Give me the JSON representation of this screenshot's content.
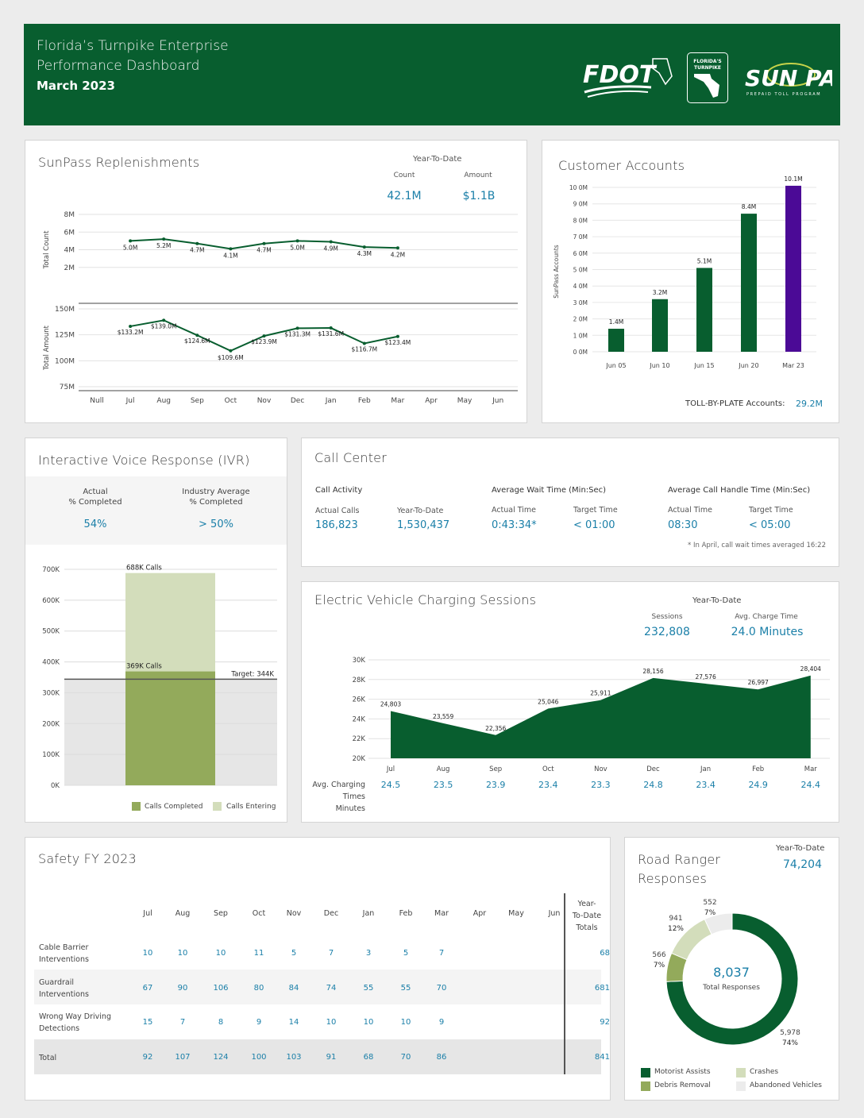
{
  "header": {
    "line1": "Florida’s Turnpike Enterprise",
    "line2": "Performance Dashboard",
    "period": "March 2023",
    "logos": {
      "fdot": "FDOT",
      "turnpike_line1": "FLORIDA'S",
      "turnpike_line2": "TURNPIKE",
      "sunpass": "SUN PASS",
      "sunpass_tag": "PREPAID TOLL PROGRAM"
    }
  },
  "sunpass": {
    "title": "SunPass Replenishments",
    "ytd_label": "Year-To-Date",
    "count_label": "Count",
    "amount_label": "Amount",
    "count_value": "42.1M",
    "amount_value": "$1.1B"
  },
  "customer": {
    "title": "Customer Accounts",
    "tbp_label": "TOLL-BY-PLATE Accounts:",
    "tbp_value": "29.2M"
  },
  "ivr": {
    "title": "Interactive Voice Response (IVR)",
    "actual_label_1": "Actual",
    "actual_label_2": "% Completed",
    "actual_value": "54%",
    "industry_label_1": "Industry Average",
    "industry_label_2": "% Completed",
    "industry_value": "> 50%",
    "legend_completed": "Calls Completed",
    "legend_entering": "Calls Entering"
  },
  "callcenter": {
    "title": "Call Center",
    "activity_label": "Call Activity",
    "actual_calls_label": "Actual Calls",
    "actual_calls": "186,823",
    "ytd_label": "Year-To-Date",
    "ytd_calls": "1,530,437",
    "wait_label": "Average Wait Time (Min:Sec)",
    "wait_actual_label": "Actual Time",
    "wait_actual": "0:43:34*",
    "wait_target_label": "Target Time",
    "wait_target": "< 01:00",
    "handle_label": "Average Call Handle Time (Min:Sec)",
    "handle_actual_label": "Actual Time",
    "handle_actual": "08:30",
    "handle_target_label": "Target Time",
    "handle_target": "< 05:00",
    "footnote": "* In April, call wait times averaged 16:22"
  },
  "ev": {
    "title": "Electric Vehicle Charging Sessions",
    "ytd_label": "Year-To-Date",
    "sessions_label": "Sessions",
    "sessions_value": "232,808",
    "avg_label": "Avg. Charge Time",
    "avg_value": "24.0 Minutes",
    "row_label_1": "Avg. Charging",
    "row_label_2": "Times",
    "row_label_3": "Minutes"
  },
  "safety": {
    "title": "Safety FY 2023",
    "months": [
      "Jul",
      "Aug",
      "Sep",
      "Oct",
      "Nov",
      "Dec",
      "Jan",
      "Feb",
      "Mar",
      "Apr",
      "May",
      "Jun"
    ],
    "ytd_header_1": "Year-",
    "ytd_header_2": "To-Date",
    "ytd_header_3": "Totals",
    "rows": [
      {
        "label1": "Cable Barrier",
        "label2": "Interventions",
        "values": [
          "10",
          "10",
          "10",
          "11",
          "5",
          "7",
          "3",
          "5",
          "7"
        ],
        "total": "68"
      },
      {
        "label1": "Guardrail",
        "label2": "Interventions",
        "values": [
          "67",
          "90",
          "106",
          "80",
          "84",
          "74",
          "55",
          "55",
          "70"
        ],
        "total": "681"
      },
      {
        "label1": "Wrong Way Driving",
        "label2": "Detections",
        "values": [
          "15",
          "7",
          "8",
          "9",
          "14",
          "10",
          "10",
          "10",
          "9"
        ],
        "total": "92"
      },
      {
        "label1": "Total",
        "label2": "",
        "values": [
          "92",
          "107",
          "124",
          "100",
          "103",
          "91",
          "68",
          "70",
          "86"
        ],
        "total": "841"
      }
    ]
  },
  "ranger": {
    "title_1": "Road Ranger",
    "title_2": "Responses",
    "ytd_label": "Year-To-Date",
    "ytd_value": "74,204",
    "center_value": "8,037",
    "center_label": "Total Responses",
    "legend": [
      "Motorist Assists",
      "Crashes",
      "Debris Removal",
      "Abandoned Vehicles"
    ]
  },
  "chart_data": [
    {
      "type": "line",
      "title": "SunPass Replenishments",
      "categories": [
        "Null",
        "Jul",
        "Aug",
        "Sep",
        "Oct",
        "Nov",
        "Dec",
        "Jan",
        "Feb",
        "Mar",
        "Apr",
        "May",
        "Jun"
      ],
      "series": [
        {
          "name": "Total Count",
          "ylabel": "Total Count",
          "ylim": [
            0,
            8
          ],
          "ticks": [
            "2M",
            "4M",
            "6M",
            "8M"
          ],
          "values": [
            null,
            5.0,
            5.2,
            4.7,
            4.1,
            4.7,
            5.0,
            4.9,
            4.3,
            4.2,
            null,
            null,
            null
          ],
          "labels": [
            "",
            "5.0M",
            "5.2M",
            "4.7M",
            "4.1M",
            "4.7M",
            "5.0M",
            "4.9M",
            "4.3M",
            "4.2M",
            "",
            "",
            ""
          ]
        },
        {
          "name": "Total Amount",
          "ylabel": "Total Amount",
          "ylim": [
            75,
            150
          ],
          "ticks": [
            "75M",
            "100M",
            "125M",
            "150M"
          ],
          "values": [
            null,
            133.2,
            139.0,
            124.6,
            109.6,
            123.9,
            131.3,
            131.6,
            116.7,
            123.4,
            null,
            null,
            null
          ],
          "labels": [
            "",
            "$133.2M",
            "$139.0M",
            "$124.6M",
            "$109.6M",
            "$123.9M",
            "$131.3M",
            "$131.6M",
            "$116.7M",
            "$123.4M",
            "",
            "",
            ""
          ]
        }
      ]
    },
    {
      "type": "bar",
      "title": "Customer Accounts",
      "ylabel": "SunPass Accounts",
      "categories": [
        "Jun 05",
        "Jun 10",
        "Jun 15",
        "Jun 20",
        "Mar 23"
      ],
      "values": [
        1.4,
        3.2,
        5.1,
        8.4,
        10.1
      ],
      "labels": [
        "1.4M",
        "3.2M",
        "5.1M",
        "8.4M",
        "10.1M"
      ],
      "yticks": [
        "0 0M",
        "1 0M",
        "2 0M",
        "3 0M",
        "4 0M",
        "5 0M",
        "6 0M",
        "7 0M",
        "8 0M",
        "9 0M",
        "10 0M"
      ],
      "ylim": [
        0,
        10
      ],
      "colors": [
        "#085e2f",
        "#085e2f",
        "#085e2f",
        "#085e2f",
        "#4b0a96"
      ]
    },
    {
      "type": "bar",
      "title": "Interactive Voice Response (IVR)",
      "series": [
        {
          "name": "Calls Entering",
          "value": 688,
          "label": "688K Calls",
          "color": "#d3ddbb"
        },
        {
          "name": "Calls Completed",
          "value": 369,
          "label": "369K Calls",
          "color": "#93aa5b"
        }
      ],
      "target": 344,
      "target_label": "Target: 344K",
      "ylim": [
        0,
        700
      ],
      "yticks": [
        "0K",
        "100K",
        "200K",
        "300K",
        "400K",
        "500K",
        "600K",
        "700K"
      ]
    },
    {
      "type": "area",
      "title": "Electric Vehicle Charging Sessions",
      "categories": [
        "Jul",
        "Aug",
        "Sep",
        "Oct",
        "Nov",
        "Dec",
        "Jan",
        "Feb",
        "Mar"
      ],
      "values": [
        24803,
        23559,
        22356,
        25046,
        25911,
        28156,
        27576,
        26997,
        28404
      ],
      "labels": [
        "24,803",
        "23,559",
        "22,356",
        "25,046",
        "25,911",
        "28,156",
        "27,576",
        "26,997",
        "28,404"
      ],
      "avg_charging_minutes": [
        "24.5",
        "23.5",
        "23.9",
        "23.4",
        "23.3",
        "24.8",
        "23.4",
        "24.9",
        "24.4"
      ],
      "ylim": [
        20000,
        30000
      ],
      "yticks": [
        "20K",
        "22K",
        "24K",
        "26K",
        "28K",
        "30K"
      ],
      "color": "#085e2f"
    },
    {
      "type": "pie",
      "title": "Road Ranger Responses",
      "slices": [
        {
          "name": "Motorist Assists",
          "value": 5978,
          "pct": "74%",
          "label": "5,978",
          "color": "#085e2f"
        },
        {
          "name": "Debris Removal",
          "value": 566,
          "pct": "7%",
          "label": "566",
          "color": "#93aa5b"
        },
        {
          "name": "Crashes",
          "value": 941,
          "pct": "12%",
          "label": "941",
          "color": "#d3ddbb"
        },
        {
          "name": "Abandoned Vehicles",
          "value": 552,
          "pct": "7%",
          "label": "552",
          "color": "#ececec"
        }
      ]
    }
  ]
}
